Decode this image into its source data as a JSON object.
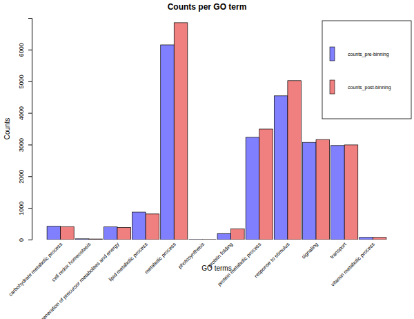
{
  "chart_data": {
    "type": "bar",
    "title": "Counts per GO term",
    "x_label": "GO terms",
    "y_label": "Counts",
    "categories": [
      "carbohydrate metabolic process",
      "cell redox homeostasis",
      "generation of precursor metabolites and energy",
      "lipid metabolic process",
      "metabolic process",
      "photosynthesis",
      "protein folding",
      "protein metabolic process",
      "response to stimulus",
      "signaling",
      "transport",
      "vitamin metabolic process"
    ],
    "series": [
      {
        "name": "counts_pre-binning",
        "color": "#8080ff",
        "values": [
          420,
          25,
          400,
          870,
          6150,
          5,
          190,
          3230,
          4540,
          3070,
          2970,
          70
        ]
      },
      {
        "name": "counts_post-binning",
        "color": "#f08080",
        "values": [
          410,
          20,
          385,
          810,
          6850,
          5,
          340,
          3490,
          5020,
          3160,
          2990,
          70
        ]
      }
    ],
    "ylim": [
      0,
      7000
    ],
    "yticks": [
      0,
      1000,
      2000,
      3000,
      4000,
      5000,
      6000
    ],
    "grid": false,
    "legend": "top-right"
  }
}
